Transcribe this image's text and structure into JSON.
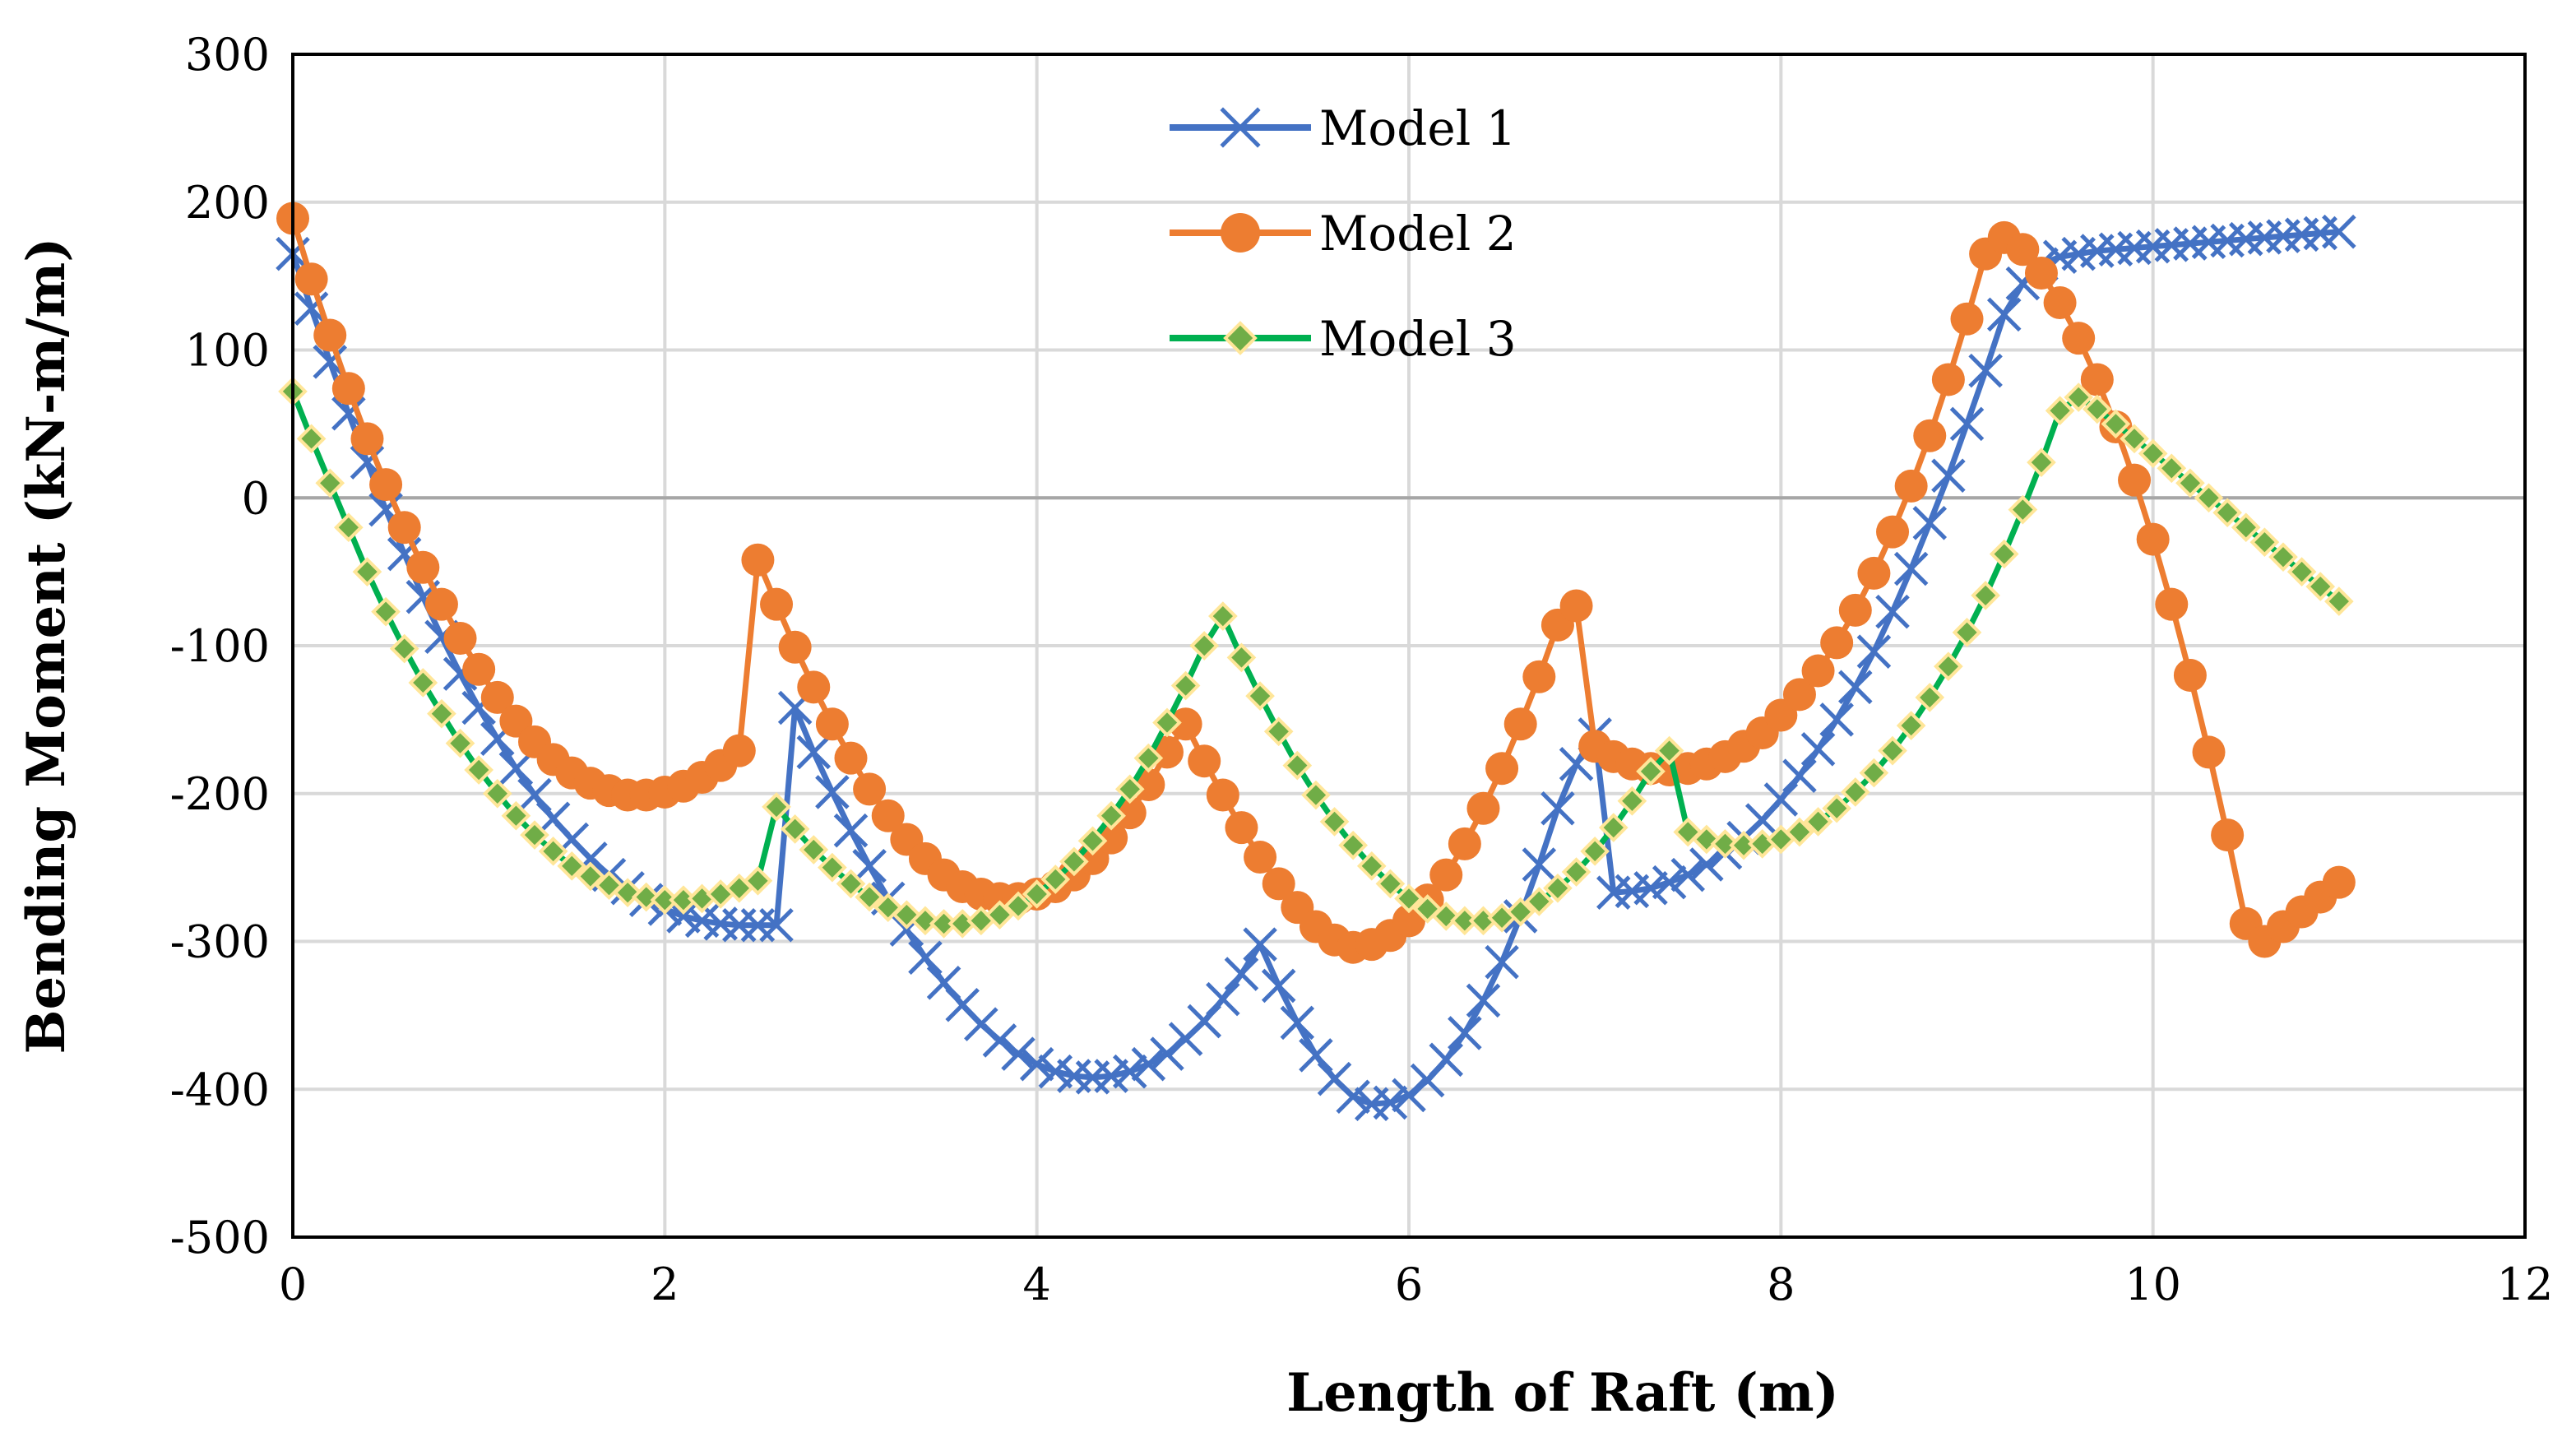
{
  "chart_data": {
    "type": "line",
    "title": "",
    "xlabel": "Length of Raft (m)",
    "ylabel": "Bending Moment (kN-m/m)",
    "xlim": [
      0,
      12
    ],
    "ylim": [
      -500,
      300
    ],
    "xticks": [
      0,
      2,
      4,
      6,
      8,
      10,
      12
    ],
    "yticks": [
      300,
      200,
      100,
      0,
      -100,
      -200,
      -300,
      -400,
      -500
    ],
    "grid": true,
    "legend_position": "top-center",
    "series": [
      {
        "name": "Model 1",
        "color": "#4472C4",
        "marker": "x",
        "x": [
          0,
          0.1,
          0.2,
          0.3,
          0.4,
          0.5,
          0.6,
          0.7,
          0.8,
          0.9,
          1.0,
          1.1,
          1.2,
          1.3,
          1.4,
          1.5,
          1.6,
          1.7,
          1.8,
          1.9,
          2.0,
          2.1,
          2.2,
          2.3,
          2.4,
          2.5,
          2.6,
          2.7,
          2.8,
          2.9,
          3.0,
          3.1,
          3.2,
          3.3,
          3.4,
          3.5,
          3.6,
          3.7,
          3.8,
          3.9,
          4.0,
          4.1,
          4.2,
          4.3,
          4.4,
          4.5,
          4.6,
          4.7,
          4.8,
          4.9,
          5.0,
          5.1,
          5.2,
          5.3,
          5.4,
          5.5,
          5.6,
          5.7,
          5.8,
          5.9,
          6.0,
          6.1,
          6.2,
          6.3,
          6.4,
          6.5,
          6.6,
          6.7,
          6.8,
          6.9,
          7.0,
          7.1,
          7.2,
          7.3,
          7.4,
          7.5,
          7.6,
          7.7,
          7.8,
          7.9,
          8.0,
          8.1,
          8.2,
          8.3,
          8.4,
          8.5,
          8.6,
          8.7,
          8.8,
          8.9,
          9.0,
          9.1,
          9.2,
          9.3,
          9.4,
          9.5,
          9.6,
          9.7,
          9.8,
          9.9,
          10.0,
          10.1,
          10.2,
          10.3,
          10.4,
          10.5,
          10.6,
          10.7,
          10.8,
          10.9,
          11.0
        ],
        "values": [
          165,
          128,
          92,
          57,
          24,
          -8,
          -38,
          -67,
          -94,
          -119,
          -142,
          -163,
          -183,
          -201,
          -217,
          -231,
          -244,
          -255,
          -264,
          -272,
          -278,
          -283,
          -286,
          -288,
          -289,
          -289,
          -289,
          -142,
          -172,
          -199,
          -225,
          -249,
          -271,
          -292,
          -311,
          -328,
          -343,
          -356,
          -367,
          -376,
          -383,
          -388,
          -391,
          -392,
          -391,
          -388,
          -383,
          -376,
          -366,
          -354,
          -339,
          -322,
          -302,
          -330,
          -355,
          -377,
          -393,
          -405,
          -410,
          -409,
          -404,
          -394,
          -380,
          -362,
          -340,
          -314,
          -283,
          -248,
          -210,
          -180,
          -160,
          -267,
          -266,
          -264,
          -260,
          -255,
          -248,
          -240,
          -230,
          -218,
          -204,
          -188,
          -170,
          -150,
          -128,
          -104,
          -77,
          -48,
          -17,
          15,
          50,
          86,
          124,
          145,
          158,
          163,
          165,
          167,
          168,
          169,
          170,
          171,
          172,
          173,
          174,
          175,
          176,
          177,
          178,
          179,
          180
        ]
      },
      {
        "name": "Model 2",
        "color": "#ED7D31",
        "marker": "circle",
        "x": [
          0,
          0.1,
          0.2,
          0.3,
          0.4,
          0.5,
          0.6,
          0.7,
          0.8,
          0.9,
          1.0,
          1.1,
          1.2,
          1.3,
          1.4,
          1.5,
          1.6,
          1.7,
          1.8,
          1.9,
          2.0,
          2.1,
          2.2,
          2.3,
          2.4,
          2.5,
          2.6,
          2.7,
          2.8,
          2.9,
          3.0,
          3.1,
          3.2,
          3.3,
          3.4,
          3.5,
          3.6,
          3.7,
          3.8,
          3.9,
          4.0,
          4.1,
          4.2,
          4.3,
          4.4,
          4.5,
          4.6,
          4.7,
          4.8,
          4.9,
          5.0,
          5.1,
          5.2,
          5.3,
          5.4,
          5.5,
          5.6,
          5.7,
          5.8,
          5.9,
          6.0,
          6.1,
          6.2,
          6.3,
          6.4,
          6.5,
          6.6,
          6.7,
          6.8,
          6.9,
          7.0,
          7.1,
          7.2,
          7.3,
          7.4,
          7.5,
          7.6,
          7.7,
          7.8,
          7.9,
          8.0,
          8.1,
          8.2,
          8.3,
          8.4,
          8.5,
          8.6,
          8.7,
          8.8,
          8.9,
          9.0,
          9.1,
          9.2,
          9.3,
          9.4,
          9.5,
          9.6,
          9.7,
          9.8,
          9.9,
          10.0,
          10.1,
          10.2,
          10.3,
          10.4,
          10.5,
          10.6,
          10.7,
          10.8,
          10.9,
          11.0
        ],
        "values": [
          189,
          148,
          110,
          74,
          40,
          9,
          -20,
          -47,
          -72,
          -95,
          -116,
          -135,
          -151,
          -165,
          -177,
          -186,
          -193,
          -198,
          -201,
          -201,
          -199,
          -195,
          -189,
          -181,
          -171,
          -42,
          -72,
          -101,
          -128,
          -153,
          -176,
          -197,
          -215,
          -231,
          -244,
          -255,
          -263,
          -268,
          -271,
          -271,
          -268,
          -263,
          -255,
          -244,
          -230,
          -213,
          -194,
          -172,
          -153,
          -178,
          -201,
          -223,
          -243,
          -261,
          -277,
          -290,
          -299,
          -304,
          -302,
          -296,
          -286,
          -272,
          -255,
          -234,
          -210,
          -183,
          -153,
          -121,
          -86,
          -73,
          -168,
          -175,
          -180,
          -183,
          -184,
          -183,
          -180,
          -175,
          -168,
          -159,
          -147,
          -133,
          -117,
          -98,
          -76,
          -51,
          -23,
          8,
          42,
          80,
          121,
          165,
          176,
          168,
          152,
          132,
          108,
          80,
          48,
          12,
          -28,
          -72,
          -120,
          -172,
          -228,
          -288,
          -300,
          -290,
          -280,
          -270,
          -260
        ]
      },
      {
        "name": "Model 3",
        "color": "#00B050",
        "marker": "diamond",
        "x": [
          0,
          0.1,
          0.2,
          0.3,
          0.4,
          0.5,
          0.6,
          0.7,
          0.8,
          0.9,
          1.0,
          1.1,
          1.2,
          1.3,
          1.4,
          1.5,
          1.6,
          1.7,
          1.8,
          1.9,
          2.0,
          2.1,
          2.2,
          2.3,
          2.4,
          2.5,
          2.6,
          2.7,
          2.8,
          2.9,
          3.0,
          3.1,
          3.2,
          3.3,
          3.4,
          3.5,
          3.6,
          3.7,
          3.8,
          3.9,
          4.0,
          4.1,
          4.2,
          4.3,
          4.4,
          4.5,
          4.6,
          4.7,
          4.8,
          4.9,
          5.0,
          5.1,
          5.2,
          5.3,
          5.4,
          5.5,
          5.6,
          5.7,
          5.8,
          5.9,
          6.0,
          6.1,
          6.2,
          6.3,
          6.4,
          6.5,
          6.6,
          6.7,
          6.8,
          6.9,
          7.0,
          7.1,
          7.2,
          7.3,
          7.4,
          7.5,
          7.6,
          7.7,
          7.8,
          7.9,
          8.0,
          8.1,
          8.2,
          8.3,
          8.4,
          8.5,
          8.6,
          8.7,
          8.8,
          8.9,
          9.0,
          9.1,
          9.2,
          9.3,
          9.4,
          9.5,
          9.6,
          9.7,
          9.8,
          9.9,
          10.0,
          10.1,
          10.2,
          10.3,
          10.4,
          10.5,
          10.6,
          10.7,
          10.8,
          10.9,
          11.0
        ],
        "values": [
          72,
          40,
          10,
          -20,
          -50,
          -77,
          -102,
          -125,
          -146,
          -166,
          -184,
          -200,
          -215,
          -228,
          -239,
          -249,
          -256,
          -262,
          -267,
          -270,
          -272,
          -272,
          -271,
          -268,
          -264,
          -259,
          -209,
          -224,
          -238,
          -250,
          -261,
          -270,
          -277,
          -282,
          -286,
          -288,
          -288,
          -286,
          -282,
          -276,
          -268,
          -258,
          -246,
          -232,
          -215,
          -197,
          -176,
          -152,
          -127,
          -100,
          -80,
          -108,
          -134,
          -158,
          -181,
          -201,
          -219,
          -235,
          -249,
          -261,
          -271,
          -278,
          -283,
          -286,
          -286,
          -284,
          -280,
          -273,
          -264,
          -253,
          -239,
          -223,
          -205,
          -185,
          -171,
          -226,
          -231,
          -234,
          -235,
          -234,
          -231,
          -226,
          -219,
          -210,
          -199,
          -186,
          -171,
          -154,
          -135,
          -114,
          -91,
          -66,
          -38,
          -8,
          24,
          59,
          68,
          60,
          50,
          40,
          30,
          20,
          10,
          0,
          -10,
          -20,
          -30,
          -40,
          -50,
          -60,
          -70
        ]
      }
    ]
  }
}
